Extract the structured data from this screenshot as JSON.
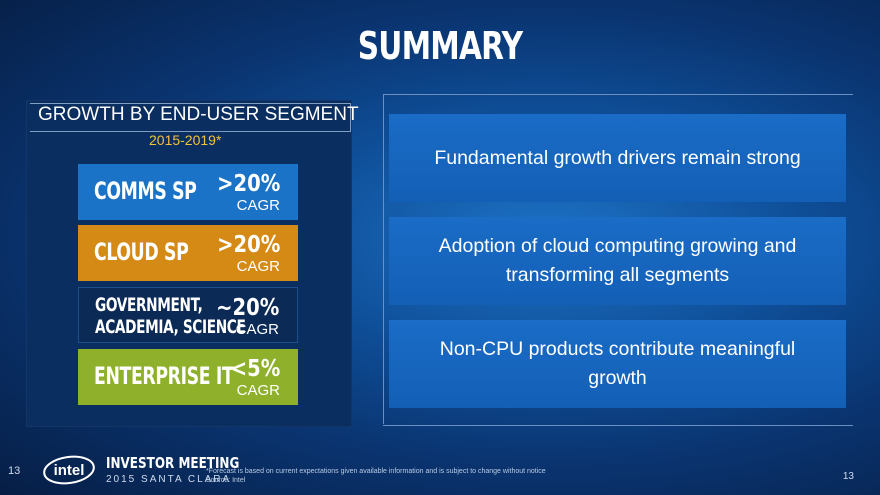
{
  "slide": {
    "title": "SUMMARY"
  },
  "left_panel": {
    "header": "GROWTH BY END-USER SEGMENT",
    "subheader": "2015-2019*",
    "segments": [
      {
        "name": "COMMS SP",
        "value": ">20%",
        "unit": "CAGR",
        "color": "#1a73c6"
      },
      {
        "name": "CLOUD SP",
        "value": ">20%",
        "unit": "CAGR",
        "color": "#d68a16"
      },
      {
        "name_line1": "GOVERNMENT,",
        "name_line2": "ACADEMIA, SCIENCE",
        "value": "~20%",
        "unit": "CAGR",
        "color": "#0b2a56"
      },
      {
        "name": "ENTERPRISE IT",
        "value": "<5%",
        "unit": "CAGR",
        "color": "#8fb02a"
      }
    ]
  },
  "right_panel": {
    "points": [
      "Fundamental growth drivers remain strong",
      "Adoption of cloud computing growing and transforming all segments",
      "Non-CPU products contribute meaningful growth"
    ]
  },
  "footer": {
    "page_left": "13",
    "brand": "intel",
    "event_title": "INVESTOR MEETING",
    "event_subtitle": "2015 SANTA CLARA",
    "footnote_line1": "*Forecast is based on current expectations given available information and is subject to change without notice",
    "footnote_line2": "Source: Intel",
    "page_right": "13"
  }
}
